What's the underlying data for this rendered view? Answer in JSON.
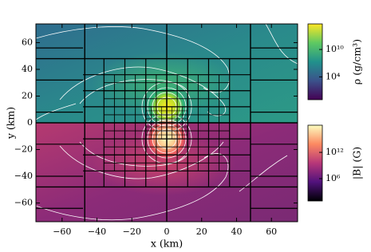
{
  "chart_data": {
    "type": "heatmap",
    "xlabel": "x (km)",
    "ylabel": "y (km)",
    "xlim": [
      -75,
      75
    ],
    "ylim": [
      -74,
      74
    ],
    "xticks": [
      {
        "value": -60,
        "label": "−60"
      },
      {
        "value": -40,
        "label": "−40"
      },
      {
        "value": -20,
        "label": "−20"
      },
      0,
      20,
      40,
      60
    ],
    "yticks": [
      {
        "value": -60,
        "label": "−60"
      },
      {
        "value": -40,
        "label": "−40"
      },
      {
        "value": -20,
        "label": "−20"
      },
      0,
      20,
      40,
      60
    ],
    "colorbars": [
      {
        "label": "ρ (g/cm³)",
        "log": true,
        "lim": [
          0.1,
          4000000000000000.0
        ],
        "ticks": [
          {
            "value": 10000,
            "label": "10⁴"
          },
          {
            "value": 10000000000,
            "label": "10¹⁰"
          }
        ],
        "colors": [
          "#440154",
          "#3b528b",
          "#21918c",
          "#5ec962",
          "#fde725"
        ]
      },
      {
        "label": "|B| (G)",
        "log": true,
        "lim": [
          8,
          1.6e+18
        ],
        "ticks": [
          {
            "value": 1000000,
            "label": "10⁶"
          },
          {
            "value": 1000000000000,
            "label": "10¹²"
          }
        ],
        "colors": [
          "#000004",
          "#51127c",
          "#b73779",
          "#fc8961",
          "#fcfdbf"
        ]
      }
    ]
  }
}
